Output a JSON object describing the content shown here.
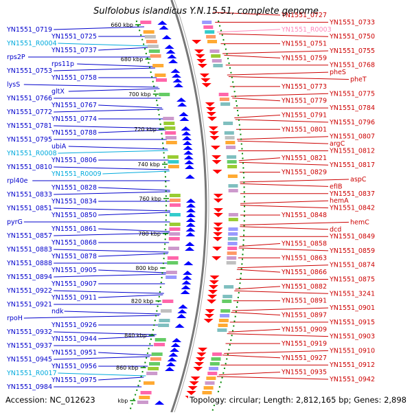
{
  "title": "Sulfolobus islandicus Y.N.15.51, complete genome",
  "footer": {
    "accession": "Accession: NC_012623",
    "summary": "Topology: circular; Length: 2,812,165 bp; Genes: 2,898"
  },
  "colors": {
    "forward_label": "#0000cc",
    "rna_label": "#00aadd",
    "reverse_label": "#cc0000",
    "reverse_rna_label": "#ff88bb",
    "forward_arrow": "#0000ff",
    "reverse_arrow": "#ff0000",
    "backbone": "#777777",
    "tick": "#008800"
  },
  "ticks": [
    "660 kbp",
    "680 kbp",
    "700 kbp",
    "720 kbp",
    "740 kbp",
    "760 kbp",
    "780 kbp",
    "800 kbp",
    "820 kbp",
    "840 kbp",
    "860 kbp",
    "kbp"
  ],
  "left_labels": [
    {
      "text": "YN1551_0719",
      "type": "gene"
    },
    {
      "text": "YN1551_0725",
      "type": "gene"
    },
    {
      "text": "YN1551_R0004",
      "type": "rna"
    },
    {
      "text": "YN1551_0737",
      "type": "gene"
    },
    {
      "text": "rps2P",
      "type": "gene"
    },
    {
      "text": "rps11p",
      "type": "gene"
    },
    {
      "text": "YN1551_0753",
      "type": "gene"
    },
    {
      "text": "YN1551_0758",
      "type": "gene"
    },
    {
      "text": "lysS",
      "type": "gene"
    },
    {
      "text": "gltX",
      "type": "gene"
    },
    {
      "text": "YN1551_0766",
      "type": "gene"
    },
    {
      "text": "YN1551_0767",
      "type": "gene"
    },
    {
      "text": "YN1551_0772",
      "type": "gene"
    },
    {
      "text": "YN1551_0774",
      "type": "gene"
    },
    {
      "text": "YN1551_0781",
      "type": "gene"
    },
    {
      "text": "YN1551_0788",
      "type": "gene"
    },
    {
      "text": "YN1551_0795",
      "type": "gene"
    },
    {
      "text": "ubiA",
      "type": "gene"
    },
    {
      "text": "YN1551_R0008",
      "type": "rna"
    },
    {
      "text": "YN1551_0806",
      "type": "gene"
    },
    {
      "text": "YN1551_0810",
      "type": "gene"
    },
    {
      "text": "YN1551_R0009",
      "type": "rna"
    },
    {
      "text": "rpl40e",
      "type": "gene"
    },
    {
      "text": "YN1551_0828",
      "type": "gene"
    },
    {
      "text": "YN1551_0833",
      "type": "gene"
    },
    {
      "text": "YN1551_0834",
      "type": "gene"
    },
    {
      "text": "YN1551_0851",
      "type": "gene"
    },
    {
      "text": "YN1551_0850",
      "type": "gene"
    },
    {
      "text": "pyrG",
      "type": "gene"
    },
    {
      "text": "YN1551_0861",
      "type": "gene"
    },
    {
      "text": "YN1551_0857",
      "type": "gene"
    },
    {
      "text": "YN1551_0868",
      "type": "gene"
    },
    {
      "text": "YN1551_0883",
      "type": "gene"
    },
    {
      "text": "YN1551_0878",
      "type": "gene"
    },
    {
      "text": "YN1551_0888",
      "type": "gene"
    },
    {
      "text": "YN1551_0905",
      "type": "gene"
    },
    {
      "text": "YN1551_0894",
      "type": "gene"
    },
    {
      "text": "YN1551_0907",
      "type": "gene"
    },
    {
      "text": "YN1551_0922",
      "type": "gene"
    },
    {
      "text": "YN1551_0911",
      "type": "gene"
    },
    {
      "text": "YN1551_0921",
      "type": "gene"
    },
    {
      "text": "ndk",
      "type": "gene"
    },
    {
      "text": "rpoH",
      "type": "gene"
    },
    {
      "text": "YN1551_0926",
      "type": "gene"
    },
    {
      "text": "YN1551_0932",
      "type": "gene"
    },
    {
      "text": "YN1551_0944",
      "type": "gene"
    },
    {
      "text": "YN1551_0937",
      "type": "gene"
    },
    {
      "text": "YN1551_0951",
      "type": "gene"
    },
    {
      "text": "YN1551_0945",
      "type": "gene"
    },
    {
      "text": "YN1551_0956",
      "type": "gene"
    },
    {
      "text": "YN1551_R0017",
      "type": "rna"
    },
    {
      "text": "YN1551_0975",
      "type": "gene"
    },
    {
      "text": "YN1551_0984",
      "type": "gene"
    }
  ],
  "right_labels": [
    {
      "text": "YN1551_0727",
      "type": "gene"
    },
    {
      "text": "YN1551_0733",
      "type": "gene"
    },
    {
      "text": "YN1551_R0003",
      "type": "rna"
    },
    {
      "text": "YN1551_0750",
      "type": "gene"
    },
    {
      "text": "YN1551_0751",
      "type": "gene"
    },
    {
      "text": "YN1551_0755",
      "type": "gene"
    },
    {
      "text": "YN1551_0759",
      "type": "gene"
    },
    {
      "text": "YN1551_0768",
      "type": "gene"
    },
    {
      "text": "pheS",
      "type": "gene"
    },
    {
      "text": "pheT",
      "type": "gene"
    },
    {
      "text": "YN1551_0773",
      "type": "gene"
    },
    {
      "text": "YN1551_0775",
      "type": "gene"
    },
    {
      "text": "YN1551_0779",
      "type": "gene"
    },
    {
      "text": "YN1551_0784",
      "type": "gene"
    },
    {
      "text": "YN1551_0791",
      "type": "gene"
    },
    {
      "text": "YN1551_0796",
      "type": "gene"
    },
    {
      "text": "YN1551_0801",
      "type": "gene"
    },
    {
      "text": "YN1551_0807",
      "type": "gene"
    },
    {
      "text": "argC",
      "type": "gene"
    },
    {
      "text": "YN1551_0812",
      "type": "gene"
    },
    {
      "text": "YN1551_0821",
      "type": "gene"
    },
    {
      "text": "YN1551_0817",
      "type": "gene"
    },
    {
      "text": "YN1551_0829",
      "type": "gene"
    },
    {
      "text": "aspC",
      "type": "gene"
    },
    {
      "text": "efIB",
      "type": "gene"
    },
    {
      "text": "YN1551_0837",
      "type": "gene"
    },
    {
      "text": "hemA",
      "type": "gene"
    },
    {
      "text": "YN1551_0842",
      "type": "gene"
    },
    {
      "text": "YN1551_0848",
      "type": "gene"
    },
    {
      "text": "hemC",
      "type": "gene"
    },
    {
      "text": "dcd",
      "type": "gene"
    },
    {
      "text": "YN1551_0849",
      "type": "gene"
    },
    {
      "text": "YN1551_0858",
      "type": "gene"
    },
    {
      "text": "YN1551_0859",
      "type": "gene"
    },
    {
      "text": "YN1551_0863",
      "type": "gene"
    },
    {
      "text": "YN1551_0874",
      "type": "gene"
    },
    {
      "text": "YN1551_0866",
      "type": "gene"
    },
    {
      "text": "YN1551_0875",
      "type": "gene"
    },
    {
      "text": "YN1551_0882",
      "type": "gene"
    },
    {
      "text": "YN1551_3241",
      "type": "gene"
    },
    {
      "text": "YN1551_0891",
      "type": "gene"
    },
    {
      "text": "YN1551_0901",
      "type": "gene"
    },
    {
      "text": "YN1551_0897",
      "type": "gene"
    },
    {
      "text": "YN1551_0915",
      "type": "gene"
    },
    {
      "text": "YN1551_0909",
      "type": "gene"
    },
    {
      "text": "YN1551_0903",
      "type": "gene"
    },
    {
      "text": "YN1551_0919",
      "type": "gene"
    },
    {
      "text": "YN1551_0910",
      "type": "gene"
    },
    {
      "text": "YN1551_0927",
      "type": "gene"
    },
    {
      "text": "YN1551_0912",
      "type": "gene"
    },
    {
      "text": "YN1551_0935",
      "type": "gene"
    },
    {
      "text": "YN1551_0942",
      "type": "gene"
    }
  ]
}
